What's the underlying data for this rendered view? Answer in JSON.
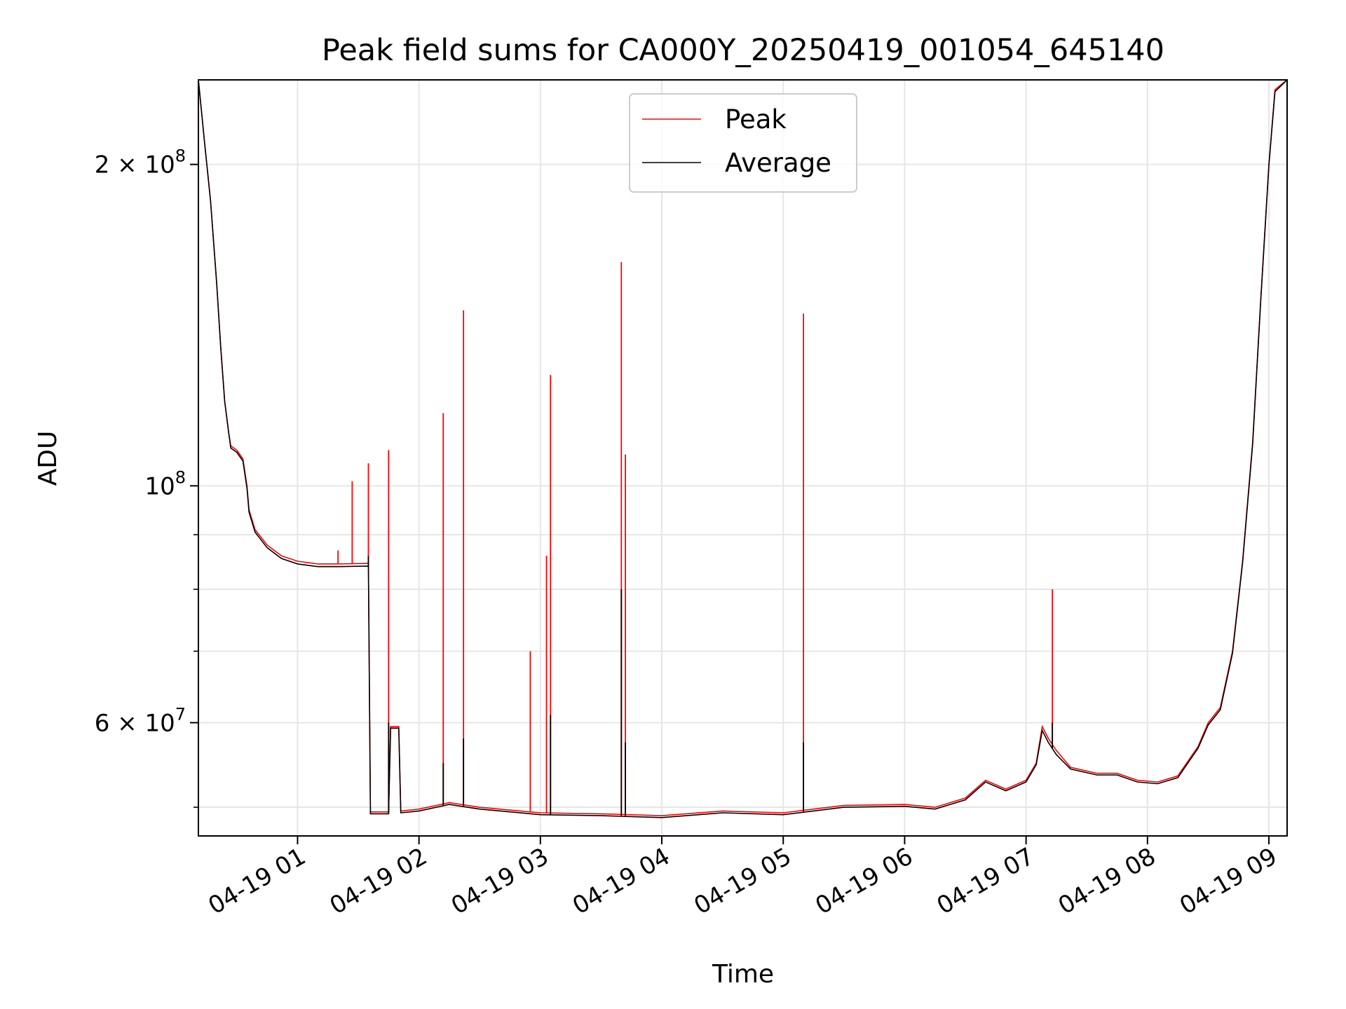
{
  "chart_data": {
    "type": "line",
    "title": "Peak field sums for CA000Y_20250419_001054_645140",
    "xlabel": "Time",
    "ylabel": "ADU",
    "y_scale": "log",
    "xlim": [
      "2025-04-19 00:11",
      "2025-04-19 09:09"
    ],
    "ylim": [
      47000000,
      240000000
    ],
    "grid": true,
    "legend_position": "top-center",
    "x_ticks": [
      {
        "t": "2025-04-19 01:00",
        "label": "04-19 01"
      },
      {
        "t": "2025-04-19 02:00",
        "label": "04-19 02"
      },
      {
        "t": "2025-04-19 03:00",
        "label": "04-19 03"
      },
      {
        "t": "2025-04-19 04:00",
        "label": "04-19 04"
      },
      {
        "t": "2025-04-19 05:00",
        "label": "04-19 05"
      },
      {
        "t": "2025-04-19 06:00",
        "label": "04-19 06"
      },
      {
        "t": "2025-04-19 07:00",
        "label": "04-19 07"
      },
      {
        "t": "2025-04-19 08:00",
        "label": "04-19 08"
      },
      {
        "t": "2025-04-19 09:00",
        "label": "04-19 09"
      }
    ],
    "y_major_ticks": [
      {
        "v": 100000000,
        "base": "10",
        "exp": "8"
      },
      {
        "v": 200000000,
        "base": "2 × 10",
        "exp": "8"
      },
      {
        "v": 60000000,
        "base": "6 × 10",
        "exp": "7"
      }
    ],
    "y_minor_ticks": [
      50000000,
      70000000,
      80000000,
      90000000
    ],
    "series": [
      {
        "name": "Peak",
        "color": "#ff0000",
        "points": [
          [
            "2025-04-19 00:11",
            240000000
          ],
          [
            "2025-04-19 00:14",
            210000000
          ],
          [
            "2025-04-19 00:17",
            185000000
          ],
          [
            "2025-04-19 00:20",
            155000000
          ],
          [
            "2025-04-19 00:22",
            135000000
          ],
          [
            "2025-04-19 00:24",
            120000000
          ],
          [
            "2025-04-19 00:26",
            112000000
          ],
          [
            "2025-04-19 00:27",
            109000000
          ],
          [
            "2025-04-19 00:30",
            108000000
          ],
          [
            "2025-04-19 00:33",
            106000000
          ],
          [
            "2025-04-19 00:35",
            100000000
          ],
          [
            "2025-04-19 00:36",
            95000000
          ],
          [
            "2025-04-19 00:39",
            91000000
          ],
          [
            "2025-04-19 00:45",
            88000000
          ],
          [
            "2025-04-19 00:52",
            86000000
          ],
          [
            "2025-04-19 01:00",
            85000000
          ],
          [
            "2025-04-19 01:10",
            84500000
          ],
          [
            "2025-04-19 01:20",
            84500000
          ],
          [
            "2025-04-19 01:35",
            84600000
          ],
          [
            "2025-04-19 01:36",
            49500000
          ],
          [
            "2025-04-19 01:45",
            49500000
          ],
          [
            "2025-04-19 01:46",
            59500000
          ],
          [
            "2025-04-19 01:50",
            59500000
          ],
          [
            "2025-04-19 01:51",
            49600000
          ],
          [
            "2025-04-19 02:00",
            49800000
          ],
          [
            "2025-04-19 02:15",
            50500000
          ],
          [
            "2025-04-19 02:30",
            50000000
          ],
          [
            "2025-04-19 03:00",
            49400000
          ],
          [
            "2025-04-19 03:30",
            49300000
          ],
          [
            "2025-04-19 04:00",
            49100000
          ],
          [
            "2025-04-19 04:30",
            49600000
          ],
          [
            "2025-04-19 05:00",
            49400000
          ],
          [
            "2025-04-19 05:30",
            50200000
          ],
          [
            "2025-04-19 06:00",
            50300000
          ],
          [
            "2025-04-19 06:15",
            50000000
          ],
          [
            "2025-04-19 06:30",
            51000000
          ],
          [
            "2025-04-19 06:40",
            53000000
          ],
          [
            "2025-04-19 06:50",
            52000000
          ],
          [
            "2025-04-19 07:00",
            53000000
          ],
          [
            "2025-04-19 07:05",
            55000000
          ],
          [
            "2025-04-19 07:08",
            59500000
          ],
          [
            "2025-04-19 07:11",
            58000000
          ],
          [
            "2025-04-19 07:15",
            56500000
          ],
          [
            "2025-04-19 07:22",
            54500000
          ],
          [
            "2025-04-19 07:35",
            53800000
          ],
          [
            "2025-04-19 07:45",
            53800000
          ],
          [
            "2025-04-19 07:55",
            53000000
          ],
          [
            "2025-04-19 08:05",
            52800000
          ],
          [
            "2025-04-19 08:15",
            53500000
          ],
          [
            "2025-04-19 08:25",
            57000000
          ],
          [
            "2025-04-19 08:30",
            60000000
          ],
          [
            "2025-04-19 08:36",
            62000000
          ],
          [
            "2025-04-19 08:42",
            70000000
          ],
          [
            "2025-04-19 08:47",
            85000000
          ],
          [
            "2025-04-19 08:52",
            110000000
          ],
          [
            "2025-04-19 08:56",
            150000000
          ],
          [
            "2025-04-19 09:00",
            200000000
          ],
          [
            "2025-04-19 09:03",
            235000000
          ],
          [
            "2025-04-19 09:09",
            240000000
          ]
        ],
        "spikes": [
          [
            "2025-04-19 01:20",
            87000000
          ],
          [
            "2025-04-19 01:27",
            101000000
          ],
          [
            "2025-04-19 01:35",
            105000000
          ],
          [
            "2025-04-19 01:45",
            108000000
          ],
          [
            "2025-04-19 02:12",
            117000000
          ],
          [
            "2025-04-19 02:22",
            146000000
          ],
          [
            "2025-04-19 02:55",
            70000000
          ],
          [
            "2025-04-19 03:03",
            86000000
          ],
          [
            "2025-04-19 03:05",
            127000000
          ],
          [
            "2025-04-19 03:40",
            162000000
          ],
          [
            "2025-04-19 03:42",
            107000000
          ],
          [
            "2025-04-19 05:10",
            145000000
          ],
          [
            "2025-04-19 07:13",
            80000000
          ]
        ]
      },
      {
        "name": "Average",
        "color": "#000000",
        "points": [
          [
            "2025-04-19 00:11",
            240000000
          ],
          [
            "2025-04-19 00:14",
            210000000
          ],
          [
            "2025-04-19 00:17",
            185000000
          ],
          [
            "2025-04-19 00:20",
            155000000
          ],
          [
            "2025-04-19 00:22",
            135000000
          ],
          [
            "2025-04-19 00:24",
            120000000
          ],
          [
            "2025-04-19 00:26",
            112000000
          ],
          [
            "2025-04-19 00:27",
            108500000
          ],
          [
            "2025-04-19 00:30",
            107500000
          ],
          [
            "2025-04-19 00:33",
            105500000
          ],
          [
            "2025-04-19 00:35",
            99500000
          ],
          [
            "2025-04-19 00:36",
            94500000
          ],
          [
            "2025-04-19 00:39",
            90500000
          ],
          [
            "2025-04-19 00:45",
            87500000
          ],
          [
            "2025-04-19 00:52",
            85500000
          ],
          [
            "2025-04-19 01:00",
            84500000
          ],
          [
            "2025-04-19 01:10",
            84000000
          ],
          [
            "2025-04-19 01:20",
            84000000
          ],
          [
            "2025-04-19 01:35",
            84100000
          ],
          [
            "2025-04-19 01:36",
            49300000
          ],
          [
            "2025-04-19 01:45",
            49300000
          ],
          [
            "2025-04-19 01:46",
            59300000
          ],
          [
            "2025-04-19 01:50",
            59300000
          ],
          [
            "2025-04-19 01:51",
            49400000
          ],
          [
            "2025-04-19 02:00",
            49600000
          ],
          [
            "2025-04-19 02:15",
            50300000
          ],
          [
            "2025-04-19 02:30",
            49800000
          ],
          [
            "2025-04-19 03:00",
            49200000
          ],
          [
            "2025-04-19 03:30",
            49100000
          ],
          [
            "2025-04-19 04:00",
            48900000
          ],
          [
            "2025-04-19 04:30",
            49400000
          ],
          [
            "2025-04-19 05:00",
            49200000
          ],
          [
            "2025-04-19 05:30",
            50000000
          ],
          [
            "2025-04-19 06:00",
            50100000
          ],
          [
            "2025-04-19 06:15",
            49800000
          ],
          [
            "2025-04-19 06:30",
            50800000
          ],
          [
            "2025-04-19 06:40",
            52800000
          ],
          [
            "2025-04-19 06:50",
            51800000
          ],
          [
            "2025-04-19 07:00",
            52800000
          ],
          [
            "2025-04-19 07:05",
            54800000
          ],
          [
            "2025-04-19 07:08",
            59000000
          ],
          [
            "2025-04-19 07:11",
            57500000
          ],
          [
            "2025-04-19 07:15",
            56000000
          ],
          [
            "2025-04-19 07:22",
            54300000
          ],
          [
            "2025-04-19 07:35",
            53600000
          ],
          [
            "2025-04-19 07:45",
            53600000
          ],
          [
            "2025-04-19 07:55",
            52800000
          ],
          [
            "2025-04-19 08:05",
            52600000
          ],
          [
            "2025-04-19 08:15",
            53300000
          ],
          [
            "2025-04-19 08:25",
            56800000
          ],
          [
            "2025-04-19 08:30",
            59700000
          ],
          [
            "2025-04-19 08:36",
            61700000
          ],
          [
            "2025-04-19 08:42",
            69700000
          ],
          [
            "2025-04-19 08:47",
            84700000
          ],
          [
            "2025-04-19 08:52",
            109500000
          ],
          [
            "2025-04-19 08:56",
            149500000
          ],
          [
            "2025-04-19 09:00",
            199500000
          ],
          [
            "2025-04-19 09:03",
            234000000
          ],
          [
            "2025-04-19 09:09",
            240000000
          ]
        ],
        "spikes": [
          [
            "2025-04-19 01:35",
            86000000
          ],
          [
            "2025-04-19 01:45",
            60000000
          ],
          [
            "2025-04-19 02:12",
            55000000
          ],
          [
            "2025-04-19 02:22",
            58000000
          ],
          [
            "2025-04-19 03:05",
            61000000
          ],
          [
            "2025-04-19 03:40",
            80000000
          ],
          [
            "2025-04-19 03:42",
            57500000
          ],
          [
            "2025-04-19 05:10",
            57500000
          ],
          [
            "2025-04-19 07:13",
            60000000
          ]
        ]
      }
    ]
  }
}
